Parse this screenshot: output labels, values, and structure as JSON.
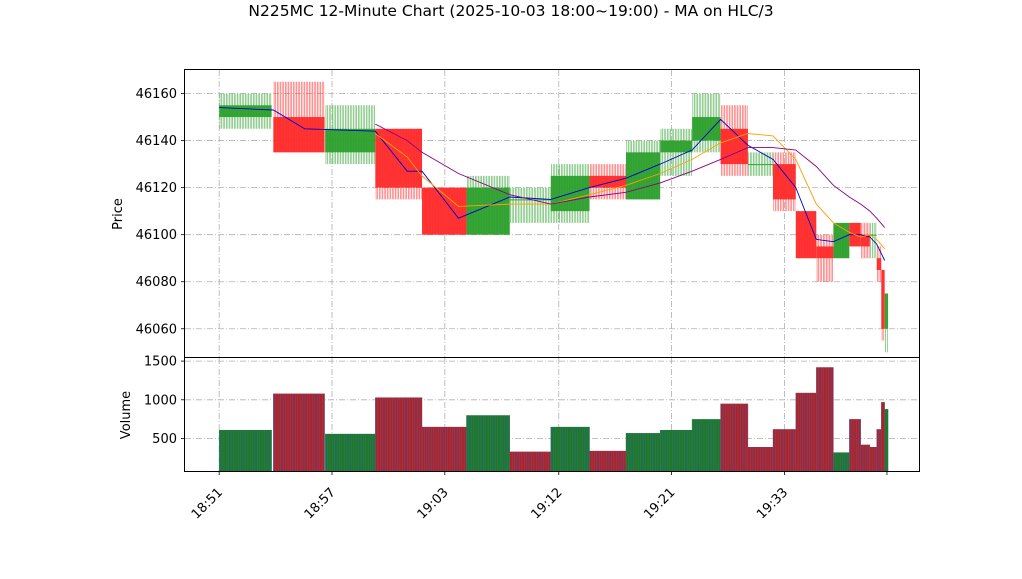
{
  "chart_data": [
    {
      "type": "candlestick",
      "title": "N225MC 12-Minute Chart (2025-10-03 18:00~19:00) - MA on HLC/3",
      "ylabel": "Price",
      "ylim": [
        46048,
        46170
      ],
      "yticks": [
        46060,
        46080,
        46100,
        46120,
        46140,
        46160
      ],
      "grid": true,
      "colors": {
        "up": "#2ca02c",
        "down": "#ff2a2a",
        "ma_short": "#0000cc",
        "ma_mid": "#ff9f00",
        "ma_long": "#8b008b"
      },
      "xlim": [
        -3.0,
        61.5
      ],
      "xticks": [
        {
          "x": 0,
          "label": "18:51"
        },
        {
          "x": 9.9,
          "label": "18:57"
        },
        {
          "x": 19.8,
          "label": "19:03"
        },
        {
          "x": 29.8,
          "label": "19:12"
        },
        {
          "x": 39.7,
          "label": "19:21"
        },
        {
          "x": 49.6,
          "label": "19:33"
        }
      ],
      "candles": [
        {
          "x": 0,
          "w": 4.6,
          "open": 46150,
          "high": 46160,
          "low": 46145,
          "close": 46155
        },
        {
          "x": 4.75,
          "w": 4.5,
          "open": 46150,
          "high": 46165,
          "low": 46135,
          "close": 46135
        },
        {
          "x": 9.3,
          "w": 4.4,
          "open": 46135,
          "high": 46155,
          "low": 46130,
          "close": 46145
        },
        {
          "x": 13.7,
          "w": 4.1,
          "open": 46145,
          "high": 46145,
          "low": 46115,
          "close": 46120
        },
        {
          "x": 17.8,
          "w": 3.9,
          "open": 46120,
          "high": 46120,
          "low": 46100,
          "close": 46100
        },
        {
          "x": 21.7,
          "w": 3.8,
          "open": 46100,
          "high": 46125,
          "low": 46100,
          "close": 46120
        },
        {
          "x": 25.5,
          "w": 3.6,
          "open": 46115,
          "high": 46120,
          "low": 46105,
          "close": 46115
        },
        {
          "x": 29.1,
          "w": 3.4,
          "open": 46110,
          "high": 46130,
          "low": 46105,
          "close": 46125
        },
        {
          "x": 32.5,
          "w": 3.2,
          "open": 46125,
          "high": 46130,
          "low": 46115,
          "close": 46120
        },
        {
          "x": 35.7,
          "w": 3.0,
          "open": 46115,
          "high": 46140,
          "low": 46115,
          "close": 46135
        },
        {
          "x": 38.7,
          "w": 2.8,
          "open": 46135,
          "high": 46145,
          "low": 46125,
          "close": 46140
        },
        {
          "x": 41.5,
          "w": 2.5,
          "open": 46140,
          "high": 46160,
          "low": 46135,
          "close": 46150
        },
        {
          "x": 44.0,
          "w": 2.4,
          "open": 46145,
          "high": 46155,
          "low": 46125,
          "close": 46130
        },
        {
          "x": 46.4,
          "w": 2.2,
          "open": 46130,
          "high": 46135,
          "low": 46125,
          "close": 46130
        },
        {
          "x": 48.6,
          "w": 2.0,
          "open": 46130,
          "high": 46135,
          "low": 46110,
          "close": 46115
        },
        {
          "x": 50.6,
          "w": 1.8,
          "open": 46110,
          "high": 46110,
          "low": 46090,
          "close": 46090
        },
        {
          "x": 52.4,
          "w": 1.5,
          "open": 46095,
          "high": 46100,
          "low": 46080,
          "close": 46090
        },
        {
          "x": 53.9,
          "w": 1.4,
          "open": 46090,
          "high": 46105,
          "low": 46090,
          "close": 46105
        },
        {
          "x": 55.3,
          "w": 1.0,
          "open": 46105,
          "high": 46105,
          "low": 46095,
          "close": 46095
        },
        {
          "x": 56.3,
          "w": 0.8,
          "open": 46100,
          "high": 46105,
          "low": 46090,
          "close": 46095
        },
        {
          "x": 57.1,
          "w": 0.6,
          "open": 46100,
          "high": 46105,
          "low": 46090,
          "close": 46100
        },
        {
          "x": 57.7,
          "w": 0.4,
          "open": 46090,
          "high": 46095,
          "low": 46080,
          "close": 46085
        },
        {
          "x": 58.1,
          "w": 0.3,
          "open": 46085,
          "high": 46085,
          "low": 46055,
          "close": 46060
        },
        {
          "x": 58.4,
          "w": 0.3,
          "open": 46060,
          "high": 46075,
          "low": 46050,
          "close": 46075
        }
      ],
      "series": [
        {
          "x": [
            0,
            4.75,
            7.5,
            13.7,
            16.5,
            17.8,
            21.0,
            25.5,
            29.1,
            32.5,
            35.7,
            38.7,
            41.5,
            44.0,
            46.4,
            48.6,
            50.6,
            52.4,
            53.9,
            55.3,
            56.3,
            57.1,
            57.7,
            58.4
          ],
          "y": [
            46154,
            46153,
            46145,
            46144,
            46127,
            46127,
            46107,
            46116,
            46115,
            46120,
            46124,
            46130,
            46136,
            46149,
            46138,
            46132,
            46120,
            46098,
            46097,
            46100,
            46100,
            46099,
            46096,
            46089
          ]
        },
        {
          "x": [
            13.7,
            16.5,
            17.8,
            21.0,
            25.5,
            29.1,
            32.5,
            35.7,
            38.7,
            41.5,
            44.0,
            46.4,
            48.6,
            50.6,
            52.4,
            53.9,
            55.3,
            56.3,
            57.1,
            57.7,
            58.4
          ],
          "y": [
            46143,
            46133,
            46125,
            46112,
            46113,
            46113,
            46117,
            46121,
            46126,
            46132,
            46139,
            46143,
            46142,
            46132,
            46113,
            46105,
            46101,
            46099,
            46100,
            46098,
            46094
          ]
        },
        {
          "x": [
            13.7,
            16.5,
            17.8,
            21.0,
            25.5,
            29.1,
            32.5,
            35.7,
            38.7,
            41.5,
            44.0,
            46.4,
            48.6,
            50.6,
            52.4,
            53.9,
            55.3,
            56.3,
            57.1,
            57.7,
            58.4
          ],
          "y": [
            46147,
            46140,
            46135,
            46126,
            46117,
            46113,
            46116,
            46118,
            46122,
            46127,
            46132,
            46137,
            46137,
            46136,
            46129,
            46121,
            46116,
            46113,
            46110,
            46107,
            46103
          ]
        }
      ]
    },
    {
      "type": "bar",
      "ylabel": "Volume",
      "ylim": [
        80,
        1540
      ],
      "yticks": [
        500,
        1000,
        1500
      ],
      "grid": true,
      "colors": {
        "up": "#1f7a1f",
        "down": "#b22222",
        "edge": "#3366cc"
      },
      "bars": [
        {
          "x": 0,
          "w": 4.6,
          "value": 610,
          "dir": "up"
        },
        {
          "x": 4.75,
          "w": 4.5,
          "value": 1080,
          "dir": "down"
        },
        {
          "x": 9.3,
          "w": 4.4,
          "value": 560,
          "dir": "up"
        },
        {
          "x": 13.7,
          "w": 4.1,
          "value": 1030,
          "dir": "down"
        },
        {
          "x": 17.8,
          "w": 3.9,
          "value": 650,
          "dir": "down"
        },
        {
          "x": 21.7,
          "w": 3.8,
          "value": 800,
          "dir": "up"
        },
        {
          "x": 25.5,
          "w": 3.6,
          "value": 330,
          "dir": "down"
        },
        {
          "x": 29.1,
          "w": 3.4,
          "value": 650,
          "dir": "up"
        },
        {
          "x": 32.5,
          "w": 3.2,
          "value": 340,
          "dir": "down"
        },
        {
          "x": 35.7,
          "w": 3.0,
          "value": 570,
          "dir": "up"
        },
        {
          "x": 38.7,
          "w": 2.8,
          "value": 610,
          "dir": "up"
        },
        {
          "x": 41.5,
          "w": 2.5,
          "value": 750,
          "dir": "up"
        },
        {
          "x": 44.0,
          "w": 2.4,
          "value": 950,
          "dir": "down"
        },
        {
          "x": 46.4,
          "w": 2.2,
          "value": 390,
          "dir": "down"
        },
        {
          "x": 48.6,
          "w": 2.0,
          "value": 620,
          "dir": "down"
        },
        {
          "x": 50.6,
          "w": 1.8,
          "value": 1090,
          "dir": "down"
        },
        {
          "x": 52.4,
          "w": 1.5,
          "value": 1420,
          "dir": "down"
        },
        {
          "x": 53.9,
          "w": 1.4,
          "value": 320,
          "dir": "up"
        },
        {
          "x": 55.3,
          "w": 1.0,
          "value": 750,
          "dir": "down"
        },
        {
          "x": 56.3,
          "w": 0.8,
          "value": 420,
          "dir": "down"
        },
        {
          "x": 57.1,
          "w": 0.6,
          "value": 390,
          "dir": "down"
        },
        {
          "x": 57.7,
          "w": 0.4,
          "value": 620,
          "dir": "down"
        },
        {
          "x": 58.1,
          "w": 0.3,
          "value": 970,
          "dir": "down"
        },
        {
          "x": 58.4,
          "w": 0.3,
          "value": 880,
          "dir": "up"
        }
      ]
    }
  ]
}
